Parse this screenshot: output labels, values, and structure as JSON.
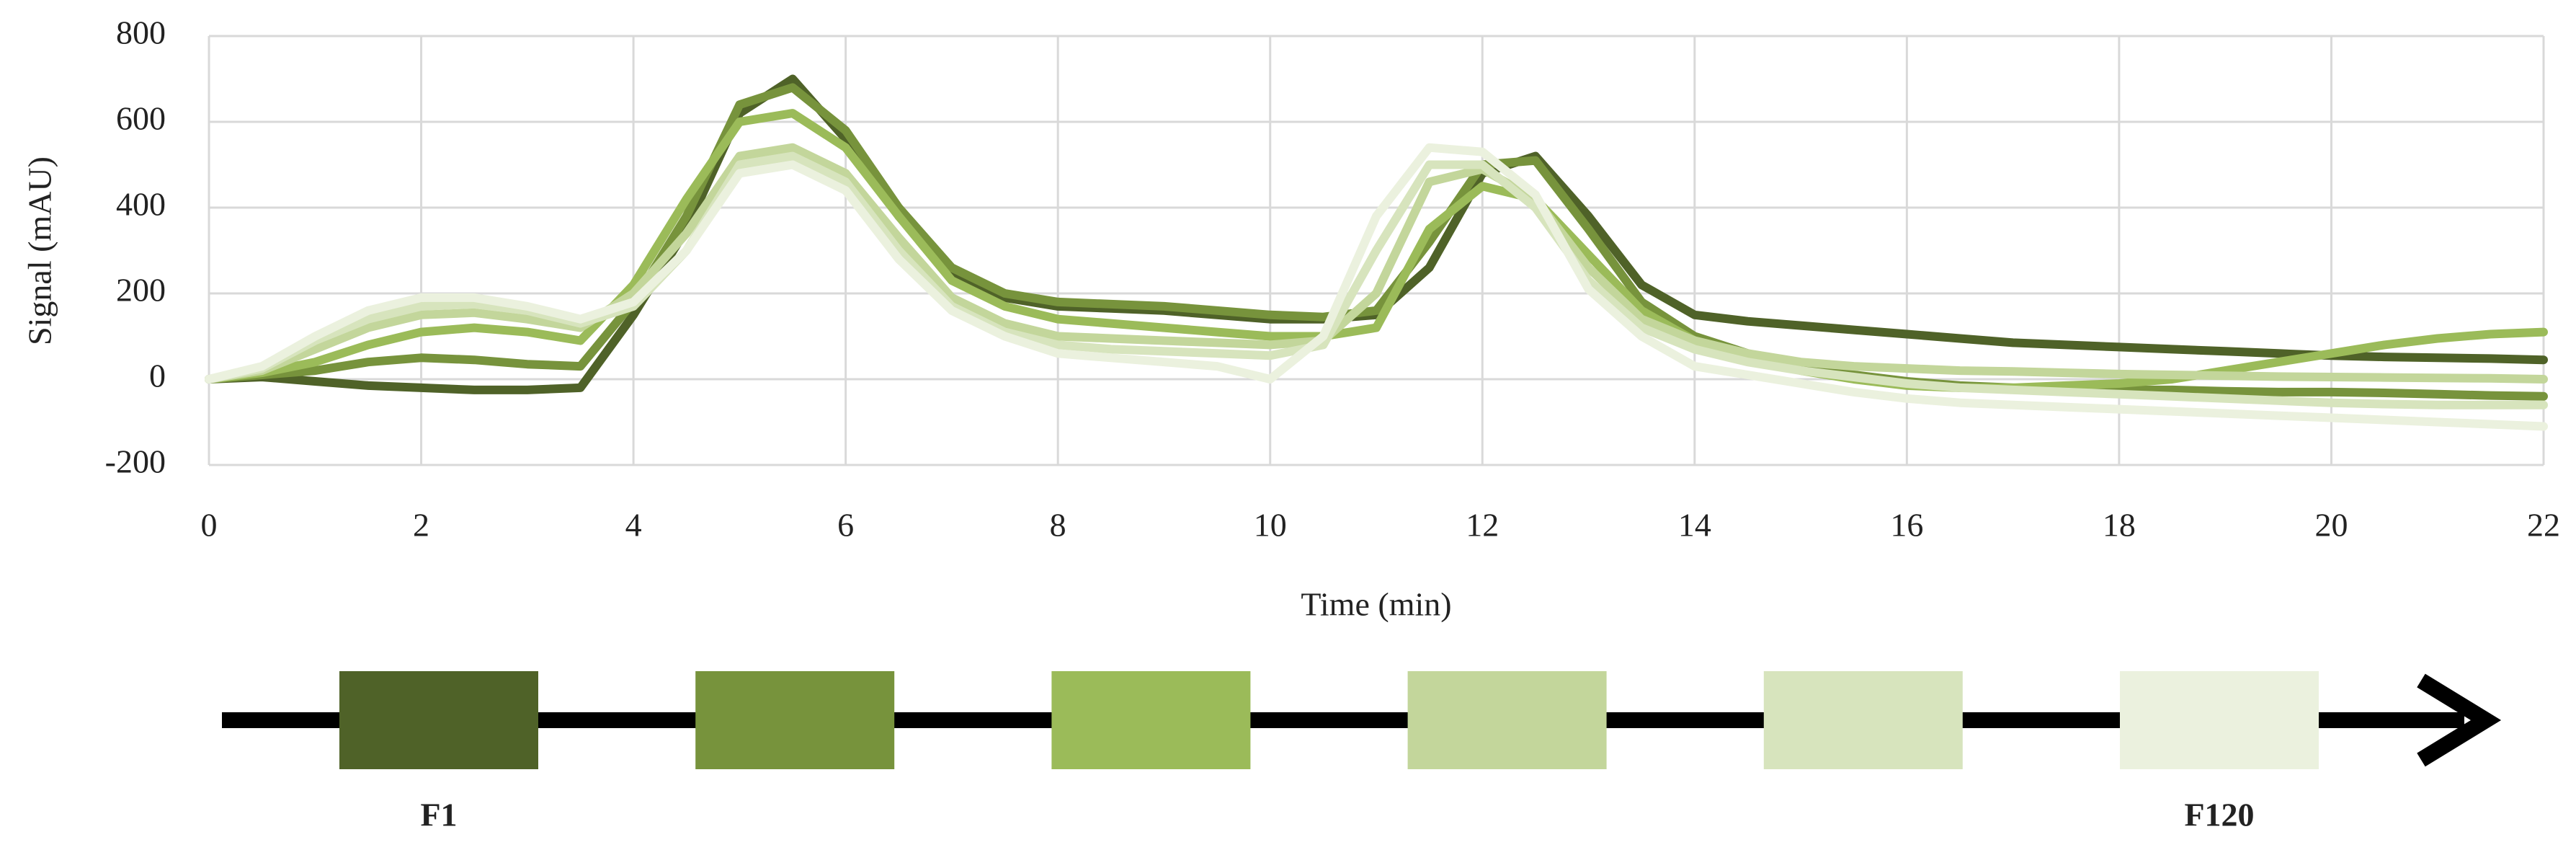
{
  "chart_data": {
    "type": "line",
    "x_label": "Time (min)",
    "y_label": "Signal (mAU)",
    "x": [
      0,
      0.5,
      1,
      1.5,
      2,
      2.5,
      3,
      3.5,
      4,
      4.5,
      5,
      5.5,
      6,
      6.5,
      7,
      7.5,
      8,
      8.5,
      9,
      9.5,
      10,
      10.5,
      11,
      11.5,
      12,
      12.5,
      13,
      13.5,
      14,
      14.5,
      15,
      15.5,
      16,
      16.5,
      17,
      17.5,
      18,
      18.5,
      19,
      19.5,
      20,
      20.5,
      21,
      21.5,
      22
    ],
    "series": [
      {
        "name": "F1",
        "color": "#4f6228",
        "values": [
          0,
          5,
          -5,
          -15,
          -20,
          -25,
          -25,
          -20,
          150,
          350,
          620,
          700,
          560,
          380,
          240,
          190,
          170,
          165,
          160,
          150,
          140,
          140,
          150,
          260,
          480,
          520,
          380,
          220,
          150,
          135,
          125,
          115,
          105,
          95,
          85,
          80,
          75,
          70,
          65,
          60,
          55,
          52,
          50,
          48,
          45
        ]
      },
      {
        "color": "#77933c",
        "values": [
          0,
          10,
          20,
          40,
          50,
          45,
          35,
          30,
          180,
          380,
          640,
          680,
          580,
          400,
          260,
          200,
          180,
          175,
          170,
          160,
          150,
          145,
          160,
          320,
          500,
          510,
          350,
          180,
          100,
          60,
          30,
          10,
          -5,
          -15,
          -20,
          -25,
          -25,
          -25,
          -28,
          -30,
          -30,
          -32,
          -35,
          -38,
          -40
        ]
      },
      {
        "color": "#9bbb59",
        "values": [
          0,
          15,
          40,
          80,
          110,
          120,
          110,
          90,
          220,
          420,
          600,
          620,
          540,
          380,
          230,
          170,
          140,
          130,
          120,
          110,
          100,
          100,
          120,
          350,
          450,
          420,
          290,
          160,
          90,
          50,
          20,
          0,
          -15,
          -20,
          -20,
          -15,
          -10,
          0,
          20,
          40,
          60,
          80,
          95,
          105,
          110
        ]
      },
      {
        "color": "#c3d69b",
        "values": [
          0,
          20,
          70,
          120,
          150,
          155,
          140,
          120,
          200,
          340,
          520,
          540,
          480,
          330,
          190,
          130,
          100,
          95,
          90,
          85,
          80,
          90,
          200,
          460,
          490,
          420,
          260,
          140,
          90,
          60,
          40,
          30,
          25,
          20,
          18,
          15,
          12,
          10,
          8,
          6,
          5,
          4,
          3,
          2,
          0
        ]
      },
      {
        "color": "#d7e4bd",
        "values": [
          0,
          25,
          90,
          140,
          170,
          175,
          160,
          130,
          170,
          300,
          500,
          520,
          460,
          300,
          170,
          110,
          80,
          70,
          65,
          60,
          55,
          80,
          300,
          500,
          500,
          400,
          230,
          120,
          70,
          40,
          20,
          5,
          -10,
          -20,
          -25,
          -30,
          -35,
          -40,
          -45,
          -50,
          -55,
          -58,
          -60,
          -60,
          -60
        ]
      },
      {
        "name": "F120",
        "color": "#ebf1de",
        "values": [
          0,
          30,
          100,
          160,
          190,
          190,
          170,
          140,
          180,
          300,
          480,
          500,
          440,
          280,
          160,
          100,
          60,
          50,
          40,
          30,
          0,
          100,
          380,
          540,
          530,
          430,
          210,
          100,
          30,
          10,
          -10,
          -30,
          -45,
          -55,
          -60,
          -65,
          -70,
          -75,
          -80,
          -85,
          -90,
          -95,
          -100,
          -105,
          -110
        ]
      }
    ],
    "xlim": [
      0,
      22
    ],
    "xticks": [
      0,
      2,
      4,
      6,
      8,
      10,
      12,
      14,
      16,
      18,
      20,
      22
    ],
    "ylim": [
      -200,
      800
    ],
    "yticks": [
      -200,
      0,
      200,
      400,
      600,
      800
    ],
    "grid": true
  }
}
